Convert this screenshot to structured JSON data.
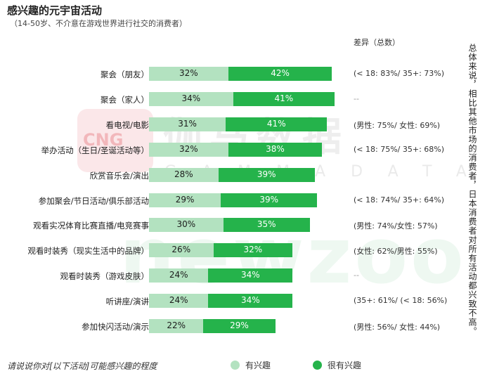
{
  "header": {
    "title": "感兴趣的元宇宙活动",
    "subtitle": "（14-50岁、不介意在游戏世界进行社交的消费者）",
    "diff_header": "差异（总数）"
  },
  "side_note": "总体来说，相比其他市场的消费者，日本消费者对所有活动都兴致不高。",
  "footer_question": "请说说你对[以下活动]可能感兴趣的程度",
  "legend": {
    "interested": "有兴趣",
    "very_interested": "很有兴趣"
  },
  "watermark": {
    "logo": "CNG",
    "cn": "伽马数据",
    "en": "GAMMADATA",
    "brand": "newzoo"
  },
  "colors": {
    "interested": "#b3e2c0",
    "very_interested": "#25b34b"
  },
  "chart_data": {
    "type": "bar",
    "orientation": "horizontal",
    "stacked": true,
    "title": "感兴趣的元宇宙活动",
    "categories": [
      "聚会（朋友）",
      "聚会（家人）",
      "看电视/电影",
      "举办活动（生日/圣诞活动等）",
      "欣赏音乐会/演出",
      "参加聚会/节日活动/俱乐部活动",
      "观看实况体育比赛直播/电竞赛事",
      "观看时装秀（现实生活中的品牌）",
      "观看时装秀（游戏皮肤）",
      "听讲座/演讲",
      "参加快闪活动/演示"
    ],
    "series": [
      {
        "name": "有兴趣",
        "values": [
          32,
          34,
          31,
          32,
          28,
          29,
          30,
          26,
          24,
          24,
          22
        ]
      },
      {
        "name": "很有兴趣",
        "values": [
          42,
          41,
          41,
          38,
          39,
          39,
          35,
          32,
          34,
          34,
          29
        ]
      }
    ],
    "value_format": "{v}%",
    "differences": [
      "(< 18: 83%/ 35+: 73%)",
      "--",
      "(男性: 75%/ 女性: 69%)",
      "(< 18: 75%/ 35+: 68%)",
      "",
      "(< 18: 74%/ 35+: 64%)",
      "(男性: 74%/女性: 57%)",
      "(女性: 62%/男性: 55%)",
      "--",
      "(35+: 61%/ (< 18: 56%)",
      "(男性: 56%/ 女性: 44%)"
    ]
  }
}
